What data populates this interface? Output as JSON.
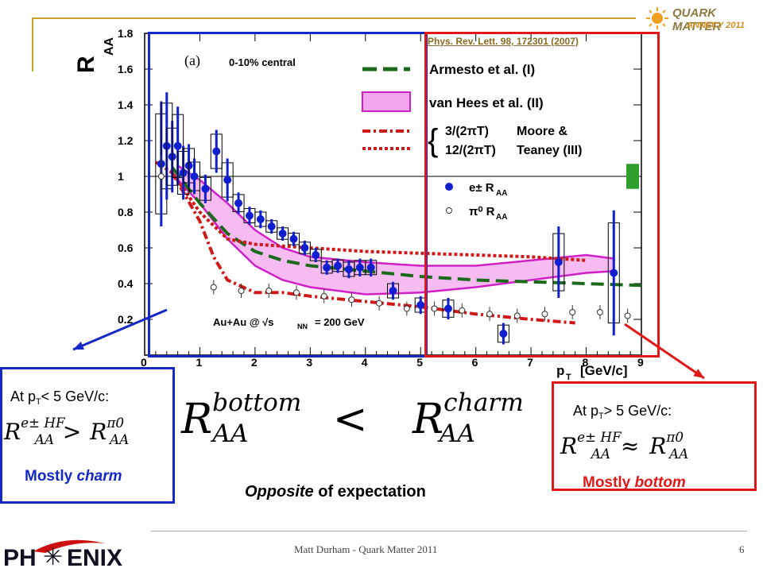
{
  "reference": "Phys. Rev. Lett. 98, 172301 (2007)",
  "conference_logo": {
    "line1": "QUARK MATTER",
    "line2": "ANNECY 2011"
  },
  "chart_data": {
    "type": "scatter",
    "panel_label": "(a)",
    "centrality": "0-10% central",
    "system": "Au+Au @ √s",
    "system_sub": "NN",
    "system_energy": "= 200 GeV",
    "ylabel": "R",
    "ylabel_sub": "AA",
    "xlabel": "p",
    "xlabel_sub": "T",
    "xlabel_unit": "[GeV/c]",
    "xlim": [
      0,
      9
    ],
    "ylim": [
      0,
      1.8
    ],
    "xticks": [
      "0",
      "1",
      "2",
      "3",
      "4",
      "5",
      "6",
      "7",
      "8",
      "9"
    ],
    "yticks": [
      "0.2",
      "0.4",
      "0.6",
      "0.8",
      "1",
      "1.2",
      "1.4",
      "1.6",
      "1.8"
    ],
    "legend": {
      "armesto": "Armesto et al. (I)",
      "vanhees": "van Hees et al. (II)",
      "moore1": "3/(2πT)",
      "moore2": "12/(2πT)",
      "moore_label1": "Moore &",
      "moore_label2": "Teaney (III)",
      "electron": "e± R",
      "electron_sub": "AA",
      "pion": "π⁰ R",
      "pion_sub": "AA"
    },
    "series": [
      {
        "name": "e± R_AA",
        "color": "#1020d0",
        "points": [
          {
            "x": 0.3,
            "y": 1.07,
            "err": 0.35
          },
          {
            "x": 0.4,
            "y": 1.17,
            "err": 0.3
          },
          {
            "x": 0.5,
            "y": 1.11,
            "err": 0.2
          },
          {
            "x": 0.6,
            "y": 1.17,
            "err": 0.22
          },
          {
            "x": 0.7,
            "y": 1.02,
            "err": 0.15
          },
          {
            "x": 0.8,
            "y": 1.06,
            "err": 0.12
          },
          {
            "x": 0.9,
            "y": 1.0,
            "err": 0.1
          },
          {
            "x": 1.1,
            "y": 0.93,
            "err": 0.08
          },
          {
            "x": 1.3,
            "y": 1.14,
            "err": 0.12
          },
          {
            "x": 1.5,
            "y": 0.98,
            "err": 0.12
          },
          {
            "x": 1.7,
            "y": 0.85,
            "err": 0.06
          },
          {
            "x": 1.9,
            "y": 0.78,
            "err": 0.05
          },
          {
            "x": 2.1,
            "y": 0.76,
            "err": 0.05
          },
          {
            "x": 2.3,
            "y": 0.72,
            "err": 0.04
          },
          {
            "x": 2.5,
            "y": 0.68,
            "err": 0.04
          },
          {
            "x": 2.7,
            "y": 0.65,
            "err": 0.04
          },
          {
            "x": 2.9,
            "y": 0.6,
            "err": 0.04
          },
          {
            "x": 3.1,
            "y": 0.56,
            "err": 0.04
          },
          {
            "x": 3.3,
            "y": 0.49,
            "err": 0.04
          },
          {
            "x": 3.5,
            "y": 0.5,
            "err": 0.04
          },
          {
            "x": 3.7,
            "y": 0.48,
            "err": 0.05
          },
          {
            "x": 3.9,
            "y": 0.49,
            "err": 0.05
          },
          {
            "x": 4.1,
            "y": 0.49,
            "err": 0.05
          },
          {
            "x": 4.5,
            "y": 0.36,
            "err": 0.05
          },
          {
            "x": 5.0,
            "y": 0.28,
            "err": 0.05
          },
          {
            "x": 5.5,
            "y": 0.26,
            "err": 0.06
          },
          {
            "x": 6.5,
            "y": 0.12,
            "err": 0.06
          },
          {
            "x": 7.5,
            "y": 0.52,
            "err": 0.2
          },
          {
            "x": 8.5,
            "y": 0.46,
            "err": 0.35
          }
        ]
      },
      {
        "name": "π⁰ R_AA",
        "color": "#333333",
        "points": [
          {
            "x": 0.3,
            "y": 1.0,
            "err": 0.12
          },
          {
            "x": 1.25,
            "y": 0.38,
            "err": 0.04
          },
          {
            "x": 1.75,
            "y": 0.36,
            "err": 0.04
          },
          {
            "x": 2.25,
            "y": 0.36,
            "err": 0.04
          },
          {
            "x": 2.75,
            "y": 0.35,
            "err": 0.04
          },
          {
            "x": 3.25,
            "y": 0.33,
            "err": 0.04
          },
          {
            "x": 3.75,
            "y": 0.31,
            "err": 0.04
          },
          {
            "x": 4.25,
            "y": 0.29,
            "err": 0.04
          },
          {
            "x": 4.75,
            "y": 0.26,
            "err": 0.04
          },
          {
            "x": 5.25,
            "y": 0.26,
            "err": 0.04
          },
          {
            "x": 5.75,
            "y": 0.25,
            "err": 0.04
          },
          {
            "x": 6.25,
            "y": 0.23,
            "err": 0.04
          },
          {
            "x": 6.75,
            "y": 0.22,
            "err": 0.04
          },
          {
            "x": 7.25,
            "y": 0.23,
            "err": 0.04
          },
          {
            "x": 7.75,
            "y": 0.24,
            "err": 0.04
          },
          {
            "x": 8.25,
            "y": 0.24,
            "err": 0.04
          },
          {
            "x": 8.75,
            "y": 0.22,
            "err": 0.04
          }
        ]
      }
    ],
    "curves": {
      "armesto": [
        [
          0.5,
          1.05
        ],
        [
          1,
          0.85
        ],
        [
          1.5,
          0.68
        ],
        [
          2,
          0.58
        ],
        [
          2.5,
          0.53
        ],
        [
          3,
          0.5
        ],
        [
          4,
          0.47
        ],
        [
          5,
          0.44
        ],
        [
          6,
          0.42
        ],
        [
          7,
          0.41
        ],
        [
          8,
          0.4
        ],
        [
          9,
          0.39
        ]
      ],
      "moore_3": [
        [
          0.5,
          1.02
        ],
        [
          1,
          0.75
        ],
        [
          1.25,
          0.55
        ],
        [
          1.5,
          0.42
        ],
        [
          2,
          0.35
        ],
        [
          2.5,
          0.35
        ],
        [
          3,
          0.33
        ],
        [
          4,
          0.3
        ],
        [
          5,
          0.27
        ],
        [
          6,
          0.23
        ],
        [
          7,
          0.2
        ],
        [
          7.8,
          0.18
        ]
      ],
      "moore_12": [
        [
          0.2,
          1.08
        ],
        [
          0.5,
          1.02
        ],
        [
          1,
          0.8
        ],
        [
          1.5,
          0.65
        ],
        [
          2,
          0.62
        ],
        [
          2.5,
          0.61
        ],
        [
          3,
          0.6
        ],
        [
          4,
          0.58
        ],
        [
          5,
          0.57
        ],
        [
          6,
          0.56
        ],
        [
          7,
          0.55
        ],
        [
          8,
          0.53
        ]
      ],
      "vanhees_upper": [
        [
          0.6,
          1.06
        ],
        [
          1,
          0.98
        ],
        [
          1.5,
          0.85
        ],
        [
          2,
          0.7
        ],
        [
          2.5,
          0.6
        ],
        [
          3,
          0.55
        ],
        [
          4,
          0.52
        ],
        [
          5,
          0.5
        ],
        [
          6,
          0.5
        ],
        [
          7,
          0.53
        ],
        [
          8,
          0.56
        ],
        [
          8.5,
          0.54
        ]
      ],
      "vanhees_lower": [
        [
          0.6,
          0.98
        ],
        [
          1,
          0.85
        ],
        [
          1.5,
          0.65
        ],
        [
          2,
          0.5
        ],
        [
          2.5,
          0.42
        ],
        [
          3,
          0.38
        ],
        [
          4,
          0.34
        ],
        [
          5,
          0.35
        ],
        [
          6,
          0.38
        ],
        [
          7,
          0.42
        ],
        [
          8,
          0.46
        ],
        [
          8.5,
          0.47
        ]
      ]
    }
  },
  "left_box": {
    "condition": "At p",
    "condition_sub": "T",
    "condition_rest": "< 5 GeV/c:",
    "formula_lhs": "R",
    "formula_lhs_sup": "e± HF",
    "formula_lhs_sub": "AA",
    "formula_op": ">",
    "formula_rhs": "R",
    "formula_rhs_sup": "π0",
    "formula_rhs_sub": "AA",
    "note_prefix": "Mostly ",
    "note_emph": "charm"
  },
  "center_formula": {
    "lhs": "R",
    "lhs_sup": "bottom",
    "lhs_sub": "AA",
    "op": "<",
    "rhs": "R",
    "rhs_sup": "charm",
    "rhs_sub": "AA"
  },
  "right_box": {
    "condition": "At p",
    "condition_sub": "T",
    "condition_rest": "> 5 GeV/c:",
    "formula_lhs": "R",
    "formula_lhs_sup": "e± HF",
    "formula_lhs_sub": "AA",
    "formula_op": "≈",
    "formula_rhs": "R",
    "formula_rhs_sup": "π0",
    "formula_rhs_sub": "AA",
    "note_prefix": "Mostly ",
    "note_emph": "bottom"
  },
  "conclusion": {
    "emph": "Opposite",
    "rest": " of expectation"
  },
  "footer": {
    "author": "Matt Durham - Quark Matter 2011",
    "page": "6",
    "logo_left": "PH",
    "logo_right": "ENIX"
  }
}
